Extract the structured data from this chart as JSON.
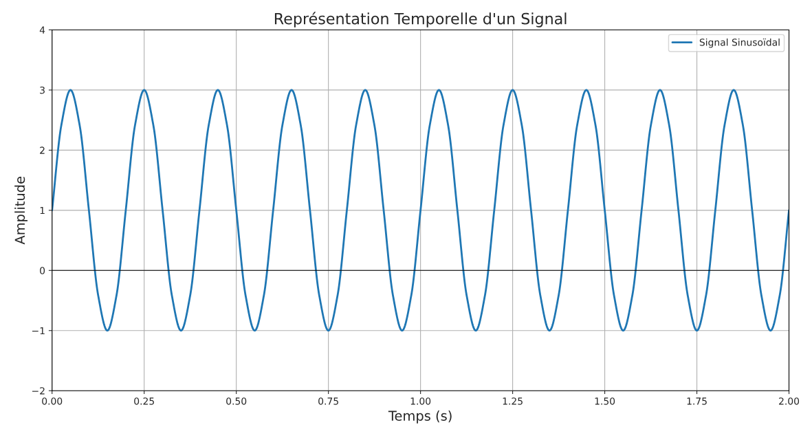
{
  "chart_data": {
    "type": "line",
    "title": "Représentation Temporelle d'un Signal",
    "xlabel": "Temps (s)",
    "ylabel": "Amplitude",
    "x": [
      0,
      0.025,
      0.05,
      0.075,
      0.1,
      0.125,
      0.15,
      0.175,
      0.2,
      0.225,
      0.25,
      0.275,
      0.3,
      0.325,
      0.35,
      0.375,
      0.4,
      0.425,
      0.45,
      0.475,
      0.5,
      0.525,
      0.55,
      0.575,
      0.6,
      0.625,
      0.65,
      0.675,
      0.7,
      0.725,
      0.75,
      0.775,
      0.8,
      0.825,
      0.85,
      0.875,
      0.9,
      0.925,
      0.95,
      0.975,
      1,
      1.025,
      1.05,
      1.075,
      1.1,
      1.125,
      1.15,
      1.175,
      1.2,
      1.225,
      1.25,
      1.275,
      1.3,
      1.325,
      1.35,
      1.375,
      1.4,
      1.425,
      1.45,
      1.475,
      1.5,
      1.525,
      1.55,
      1.575,
      1.6,
      1.625,
      1.65,
      1.675,
      1.7,
      1.725,
      1.75,
      1.775,
      1.8,
      1.825,
      1.85,
      1.875,
      1.9,
      1.925,
      1.95,
      1.975,
      2
    ],
    "series": [
      {
        "name": "Signal Sinusoïdal",
        "color": "#1f77b4",
        "values": [
          1,
          2.41,
          3,
          2.41,
          1,
          -0.41,
          -1,
          -0.41,
          1,
          2.41,
          3,
          2.41,
          1,
          -0.41,
          -1,
          -0.41,
          1,
          2.41,
          3,
          2.41,
          1,
          -0.41,
          -1,
          -0.41,
          1,
          2.41,
          3,
          2.41,
          1,
          -0.41,
          -1,
          -0.41,
          1,
          2.41,
          3,
          2.41,
          1,
          -0.41,
          -1,
          -0.41,
          1,
          2.41,
          3,
          2.41,
          1,
          -0.41,
          -1,
          -0.41,
          1,
          2.41,
          3,
          2.41,
          1,
          -0.41,
          -1,
          -0.41,
          1,
          2.41,
          3,
          2.41,
          1,
          -0.41,
          -1,
          -0.41,
          1,
          2.41,
          3,
          2.41,
          1,
          -0.41,
          -1,
          -0.41,
          1,
          2.41,
          3,
          2.41,
          1,
          -0.41,
          -1,
          -0.41,
          1
        ]
      }
    ],
    "xlim": [
      0,
      2
    ],
    "xticks": [
      {
        "value": 0,
        "label": "0.00"
      },
      {
        "value": 0.25,
        "label": "0.25"
      },
      {
        "value": 0.5,
        "label": "0.50"
      },
      {
        "value": 0.75,
        "label": "0.75"
      },
      {
        "value": 1,
        "label": "1.00"
      },
      {
        "value": 1.25,
        "label": "1.25"
      },
      {
        "value": 1.5,
        "label": "1.50"
      },
      {
        "value": 1.75,
        "label": "1.75"
      },
      {
        "value": 2,
        "label": "2.00"
      }
    ],
    "ylim": [
      -2,
      4
    ],
    "yticks": [
      {
        "value": -2,
        "label": "−2"
      },
      {
        "value": -1,
        "label": "−1"
      },
      0,
      1,
      2,
      3,
      4
    ],
    "ref_lines": [
      {
        "axis": "y",
        "value": 0,
        "color": "#000000"
      }
    ],
    "grid": true,
    "legend": "top right",
    "line_style": "solid"
  }
}
